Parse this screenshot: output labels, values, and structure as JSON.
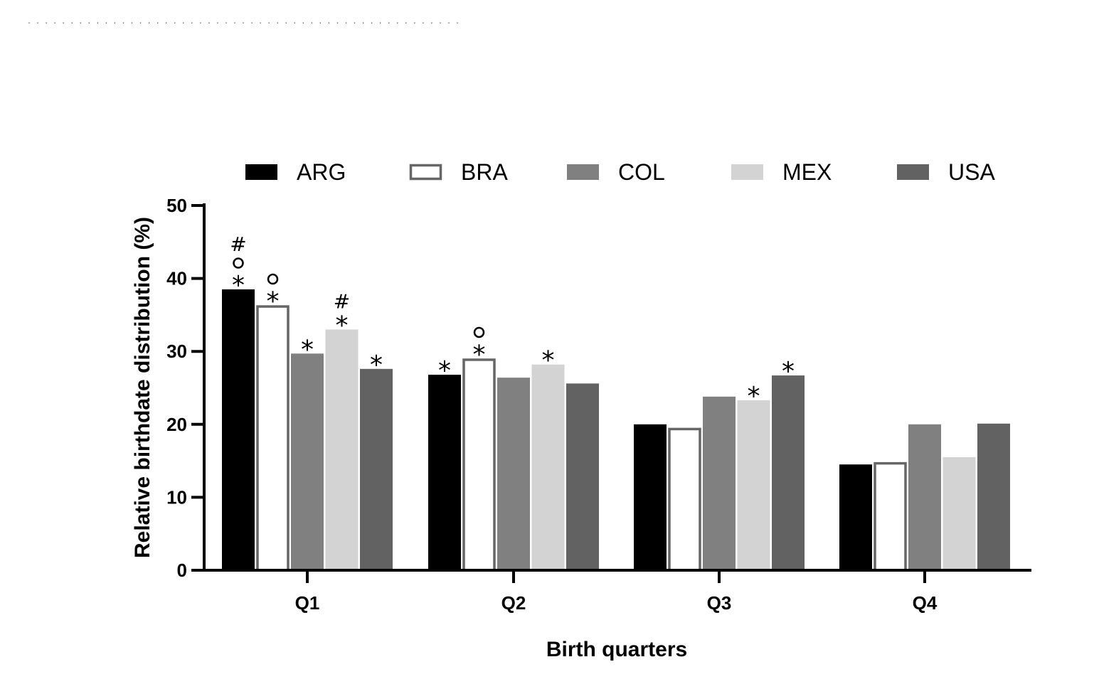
{
  "header": {
    "dots": ". . . .   . . .   . . .   . . .   . . . . . . . . . . . . . . . . . . . . . . . . . . . . . . . . . . . . . ."
  },
  "chart_data": {
    "type": "bar",
    "title": "",
    "xlabel": "Birth quarters",
    "ylabel": "Relative birthdate distribution (%)",
    "ylim": [
      0,
      50
    ],
    "yticks": [
      0,
      10,
      20,
      30,
      40,
      50
    ],
    "categories": [
      "Q1",
      "Q2",
      "Q3",
      "Q4"
    ],
    "series": [
      {
        "name": "ARG",
        "fill": "#000000",
        "stroke": "#000000",
        "values": [
          38.5,
          26.8,
          20.0,
          14.5
        ]
      },
      {
        "name": "BRA",
        "fill": "#ffffff",
        "stroke": "#666666",
        "values": [
          36.3,
          29.0,
          19.5,
          14.8
        ]
      },
      {
        "name": "COL",
        "fill": "#808080",
        "stroke": "#808080",
        "values": [
          29.7,
          26.4,
          23.8,
          20.0
        ]
      },
      {
        "name": "MEX",
        "fill": "#d3d3d3",
        "stroke": "#d3d3d3",
        "values": [
          33.0,
          28.2,
          23.3,
          15.5
        ]
      },
      {
        "name": "USA",
        "fill": "#626262",
        "stroke": "#626262",
        "values": [
          27.6,
          25.6,
          26.7,
          20.1
        ]
      }
    ],
    "legend_position": "top",
    "annotations": [
      {
        "category": 0,
        "series": 0,
        "marks": [
          "*",
          "o",
          "#"
        ]
      },
      {
        "category": 0,
        "series": 1,
        "marks": [
          "*",
          "o"
        ]
      },
      {
        "category": 0,
        "series": 2,
        "marks": [
          "*"
        ]
      },
      {
        "category": 0,
        "series": 3,
        "marks": [
          "*",
          "#"
        ]
      },
      {
        "category": 0,
        "series": 4,
        "marks": [
          "*"
        ]
      },
      {
        "category": 1,
        "series": 0,
        "marks": [
          "*"
        ]
      },
      {
        "category": 1,
        "series": 1,
        "marks": [
          "*",
          "o"
        ]
      },
      {
        "category": 1,
        "series": 3,
        "marks": [
          "*"
        ]
      },
      {
        "category": 2,
        "series": 3,
        "marks": [
          "*"
        ]
      },
      {
        "category": 2,
        "series": 4,
        "marks": [
          "*"
        ]
      }
    ]
  }
}
